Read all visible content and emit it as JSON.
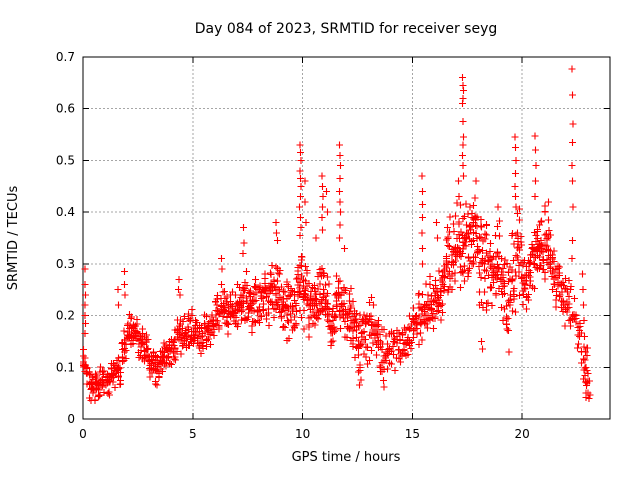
{
  "window": {
    "background_color": "#ffffff"
  },
  "chart_data": {
    "type": "scatter",
    "title": "Day 084 of 2023, SRMTID for receiver seyg",
    "xlabel": "GPS time / hours",
    "ylabel": "SRMTID / TECUs",
    "xlim": [
      0,
      24
    ],
    "ylim": [
      0,
      0.7
    ],
    "x_ticks": [
      0,
      5,
      10,
      15,
      20
    ],
    "x_tick_labels": [
      "0",
      "5",
      "10",
      "15",
      "20"
    ],
    "y_ticks": [
      0,
      0.1,
      0.2,
      0.3,
      0.4,
      0.5,
      0.6,
      0.7
    ],
    "y_tick_labels": [
      "0",
      "0.1",
      "0.2",
      "0.3",
      "0.4",
      "0.5",
      "0.6",
      "0.7"
    ],
    "grid": true,
    "legend": "none",
    "marker": "plus",
    "colors": {
      "marker": "#ff0000",
      "grid": "#a6a6a6",
      "border": "#000000",
      "background": "#ffffff",
      "text": "#000000"
    },
    "data_time_range_hours": [
      0.0,
      23.1
    ],
    "density_bins_comment": "Dense scatter (~2000 pts) summarized as bins: [hour_center, y_low, y_high, point_count]; points cluster in vertical columns at ~5-min epochs",
    "density_bins": [
      [
        0.1,
        0.05,
        0.15,
        16
      ],
      [
        0.375,
        0.025,
        0.1,
        20
      ],
      [
        0.625,
        0.025,
        0.09,
        20
      ],
      [
        0.875,
        0.04,
        0.11,
        20
      ],
      [
        1.125,
        0.04,
        0.1,
        18
      ],
      [
        1.375,
        0.05,
        0.12,
        18
      ],
      [
        1.625,
        0.06,
        0.13,
        16
      ],
      [
        1.875,
        0.09,
        0.19,
        16
      ],
      [
        2.125,
        0.14,
        0.21,
        20
      ],
      [
        2.375,
        0.13,
        0.2,
        18
      ],
      [
        2.625,
        0.11,
        0.18,
        18
      ],
      [
        2.875,
        0.1,
        0.17,
        18
      ],
      [
        3.125,
        0.07,
        0.15,
        20
      ],
      [
        3.375,
        0.06,
        0.14,
        20
      ],
      [
        3.625,
        0.08,
        0.15,
        20
      ],
      [
        3.875,
        0.09,
        0.17,
        18
      ],
      [
        4.125,
        0.1,
        0.19,
        18
      ],
      [
        4.375,
        0.11,
        0.22,
        18
      ],
      [
        4.625,
        0.12,
        0.21,
        18
      ],
      [
        4.875,
        0.13,
        0.22,
        18
      ],
      [
        5.125,
        0.12,
        0.22,
        18
      ],
      [
        5.375,
        0.09,
        0.2,
        18
      ],
      [
        5.625,
        0.13,
        0.22,
        18
      ],
      [
        5.875,
        0.14,
        0.23,
        18
      ],
      [
        6.125,
        0.15,
        0.25,
        18
      ],
      [
        6.375,
        0.16,
        0.27,
        18
      ],
      [
        6.625,
        0.15,
        0.25,
        18
      ],
      [
        6.875,
        0.16,
        0.26,
        18
      ],
      [
        7.125,
        0.16,
        0.27,
        18
      ],
      [
        7.375,
        0.17,
        0.3,
        18
      ],
      [
        7.625,
        0.16,
        0.28,
        20
      ],
      [
        7.875,
        0.17,
        0.3,
        20
      ],
      [
        8.125,
        0.17,
        0.29,
        20
      ],
      [
        8.375,
        0.18,
        0.3,
        20
      ],
      [
        8.625,
        0.18,
        0.31,
        20
      ],
      [
        8.875,
        0.18,
        0.32,
        20
      ],
      [
        9.125,
        0.16,
        0.28,
        20
      ],
      [
        9.375,
        0.15,
        0.27,
        20
      ],
      [
        9.625,
        0.16,
        0.28,
        20
      ],
      [
        9.875,
        0.18,
        0.34,
        22
      ],
      [
        10.125,
        0.17,
        0.32,
        22
      ],
      [
        10.375,
        0.15,
        0.28,
        20
      ],
      [
        10.625,
        0.16,
        0.3,
        20
      ],
      [
        10.875,
        0.17,
        0.33,
        22
      ],
      [
        11.125,
        0.16,
        0.3,
        20
      ],
      [
        11.375,
        0.13,
        0.26,
        20
      ],
      [
        11.625,
        0.15,
        0.31,
        22
      ],
      [
        11.875,
        0.14,
        0.28,
        20
      ],
      [
        12.125,
        0.12,
        0.26,
        20
      ],
      [
        12.375,
        0.11,
        0.24,
        20
      ],
      [
        12.625,
        0.07,
        0.22,
        20
      ],
      [
        12.875,
        0.1,
        0.23,
        20
      ],
      [
        13.125,
        0.11,
        0.24,
        18
      ],
      [
        13.375,
        0.1,
        0.22,
        18
      ],
      [
        13.625,
        0.06,
        0.2,
        16
      ],
      [
        13.875,
        0.08,
        0.18,
        14
      ],
      [
        14.125,
        0.09,
        0.18,
        12
      ],
      [
        14.375,
        0.1,
        0.19,
        12
      ],
      [
        14.625,
        0.1,
        0.2,
        14
      ],
      [
        14.875,
        0.11,
        0.21,
        14
      ],
      [
        15.125,
        0.13,
        0.24,
        16
      ],
      [
        15.375,
        0.13,
        0.27,
        18
      ],
      [
        15.625,
        0.15,
        0.27,
        18
      ],
      [
        15.875,
        0.16,
        0.29,
        18
      ],
      [
        16.125,
        0.17,
        0.31,
        20
      ],
      [
        16.375,
        0.18,
        0.34,
        20
      ],
      [
        16.625,
        0.2,
        0.4,
        20
      ],
      [
        16.875,
        0.21,
        0.42,
        20
      ],
      [
        17.125,
        0.22,
        0.44,
        22
      ],
      [
        17.375,
        0.22,
        0.46,
        22
      ],
      [
        17.625,
        0.24,
        0.44,
        22
      ],
      [
        17.875,
        0.25,
        0.45,
        22
      ],
      [
        18.125,
        0.18,
        0.42,
        20
      ],
      [
        18.375,
        0.2,
        0.4,
        20
      ],
      [
        18.625,
        0.2,
        0.37,
        20
      ],
      [
        18.875,
        0.2,
        0.4,
        20
      ],
      [
        19.125,
        0.18,
        0.35,
        20
      ],
      [
        19.375,
        0.14,
        0.32,
        20
      ],
      [
        19.625,
        0.18,
        0.38,
        20
      ],
      [
        19.875,
        0.2,
        0.42,
        20
      ],
      [
        20.125,
        0.18,
        0.33,
        20
      ],
      [
        20.375,
        0.2,
        0.35,
        20
      ],
      [
        20.625,
        0.22,
        0.38,
        22
      ],
      [
        20.875,
        0.26,
        0.4,
        22
      ],
      [
        21.125,
        0.26,
        0.42,
        22
      ],
      [
        21.375,
        0.24,
        0.36,
        20
      ],
      [
        21.625,
        0.2,
        0.33,
        18
      ],
      [
        21.875,
        0.17,
        0.3,
        18
      ],
      [
        22.125,
        0.15,
        0.28,
        14
      ],
      [
        22.375,
        0.13,
        0.26,
        12
      ],
      [
        22.625,
        0.1,
        0.24,
        12
      ],
      [
        22.875,
        0.05,
        0.16,
        12
      ],
      [
        23.0,
        0.03,
        0.1,
        8
      ]
    ],
    "outlier_points_comment": "Individually visible points/spike columns as [hour, SRMTID]",
    "outlier_points": [
      [
        0.08,
        0.29
      ],
      [
        0.1,
        0.26
      ],
      [
        0.12,
        0.24
      ],
      [
        0.1,
        0.22
      ],
      [
        0.08,
        0.2
      ],
      [
        0.12,
        0.185
      ],
      [
        0.1,
        0.165
      ],
      [
        1.6,
        0.25
      ],
      [
        1.62,
        0.22
      ],
      [
        1.88,
        0.285
      ],
      [
        1.9,
        0.26
      ],
      [
        1.92,
        0.24
      ],
      [
        4.38,
        0.27
      ],
      [
        4.35,
        0.25
      ],
      [
        4.42,
        0.24
      ],
      [
        6.3,
        0.31
      ],
      [
        6.33,
        0.29
      ],
      [
        7.3,
        0.37
      ],
      [
        7.33,
        0.34
      ],
      [
        7.28,
        0.32
      ],
      [
        8.78,
        0.38
      ],
      [
        8.82,
        0.36
      ],
      [
        8.85,
        0.345
      ],
      [
        9.88,
        0.53
      ],
      [
        9.9,
        0.515
      ],
      [
        9.92,
        0.5
      ],
      [
        9.88,
        0.48
      ],
      [
        9.9,
        0.465
      ],
      [
        9.93,
        0.45
      ],
      [
        9.9,
        0.43
      ],
      [
        9.87,
        0.41
      ],
      [
        9.9,
        0.39
      ],
      [
        9.92,
        0.37
      ],
      [
        9.88,
        0.355
      ],
      [
        10.1,
        0.46
      ],
      [
        10.12,
        0.42
      ],
      [
        10.15,
        0.38
      ],
      [
        10.62,
        0.35
      ],
      [
        10.88,
        0.47
      ],
      [
        10.9,
        0.45
      ],
      [
        10.92,
        0.43
      ],
      [
        10.9,
        0.41
      ],
      [
        10.88,
        0.39
      ],
      [
        10.9,
        0.365
      ],
      [
        11.1,
        0.44
      ],
      [
        11.13,
        0.4
      ],
      [
        11.68,
        0.53
      ],
      [
        11.7,
        0.51
      ],
      [
        11.72,
        0.49
      ],
      [
        11.7,
        0.465
      ],
      [
        11.68,
        0.44
      ],
      [
        11.7,
        0.42
      ],
      [
        11.73,
        0.4
      ],
      [
        11.7,
        0.375
      ],
      [
        11.68,
        0.35
      ],
      [
        11.9,
        0.33
      ],
      [
        12.6,
        0.066
      ],
      [
        12.65,
        0.075
      ],
      [
        13.7,
        0.062
      ],
      [
        15.43,
        0.47
      ],
      [
        15.45,
        0.44
      ],
      [
        15.47,
        0.415
      ],
      [
        15.45,
        0.39
      ],
      [
        15.43,
        0.36
      ],
      [
        15.45,
        0.33
      ],
      [
        15.47,
        0.3
      ],
      [
        16.1,
        0.38
      ],
      [
        16.15,
        0.35
      ],
      [
        16.6,
        0.37
      ],
      [
        17.1,
        0.46
      ],
      [
        17.13,
        0.43
      ],
      [
        17.28,
        0.66
      ],
      [
        17.3,
        0.645
      ],
      [
        17.32,
        0.635
      ],
      [
        17.3,
        0.62
      ],
      [
        17.28,
        0.61
      ],
      [
        17.3,
        0.575
      ],
      [
        17.33,
        0.545
      ],
      [
        17.3,
        0.53
      ],
      [
        17.28,
        0.51
      ],
      [
        17.3,
        0.49
      ],
      [
        17.32,
        0.47
      ],
      [
        17.9,
        0.46
      ],
      [
        18.2,
        0.135
      ],
      [
        18.15,
        0.15
      ],
      [
        18.9,
        0.41
      ],
      [
        19.4,
        0.13
      ],
      [
        19.68,
        0.545
      ],
      [
        19.7,
        0.525
      ],
      [
        19.72,
        0.5
      ],
      [
        19.7,
        0.475
      ],
      [
        19.68,
        0.45
      ],
      [
        19.7,
        0.43
      ],
      [
        19.72,
        0.41
      ],
      [
        20.58,
        0.547
      ],
      [
        20.6,
        0.52
      ],
      [
        20.62,
        0.49
      ],
      [
        20.6,
        0.46
      ],
      [
        20.58,
        0.43
      ],
      [
        21.2,
        0.42
      ],
      [
        22.28,
        0.677
      ],
      [
        22.3,
        0.627
      ],
      [
        22.32,
        0.57
      ],
      [
        22.3,
        0.535
      ],
      [
        22.28,
        0.49
      ],
      [
        22.3,
        0.46
      ],
      [
        22.32,
        0.41
      ],
      [
        22.3,
        0.345
      ],
      [
        22.28,
        0.31
      ],
      [
        22.75,
        0.28
      ],
      [
        22.78,
        0.25
      ],
      [
        22.8,
        0.22
      ],
      [
        22.82,
        0.19
      ],
      [
        22.85,
        0.16
      ],
      [
        22.88,
        0.13
      ],
      [
        22.9,
        0.1
      ],
      [
        22.95,
        0.07
      ],
      [
        23.0,
        0.05
      ],
      [
        23.05,
        0.04
      ]
    ]
  }
}
